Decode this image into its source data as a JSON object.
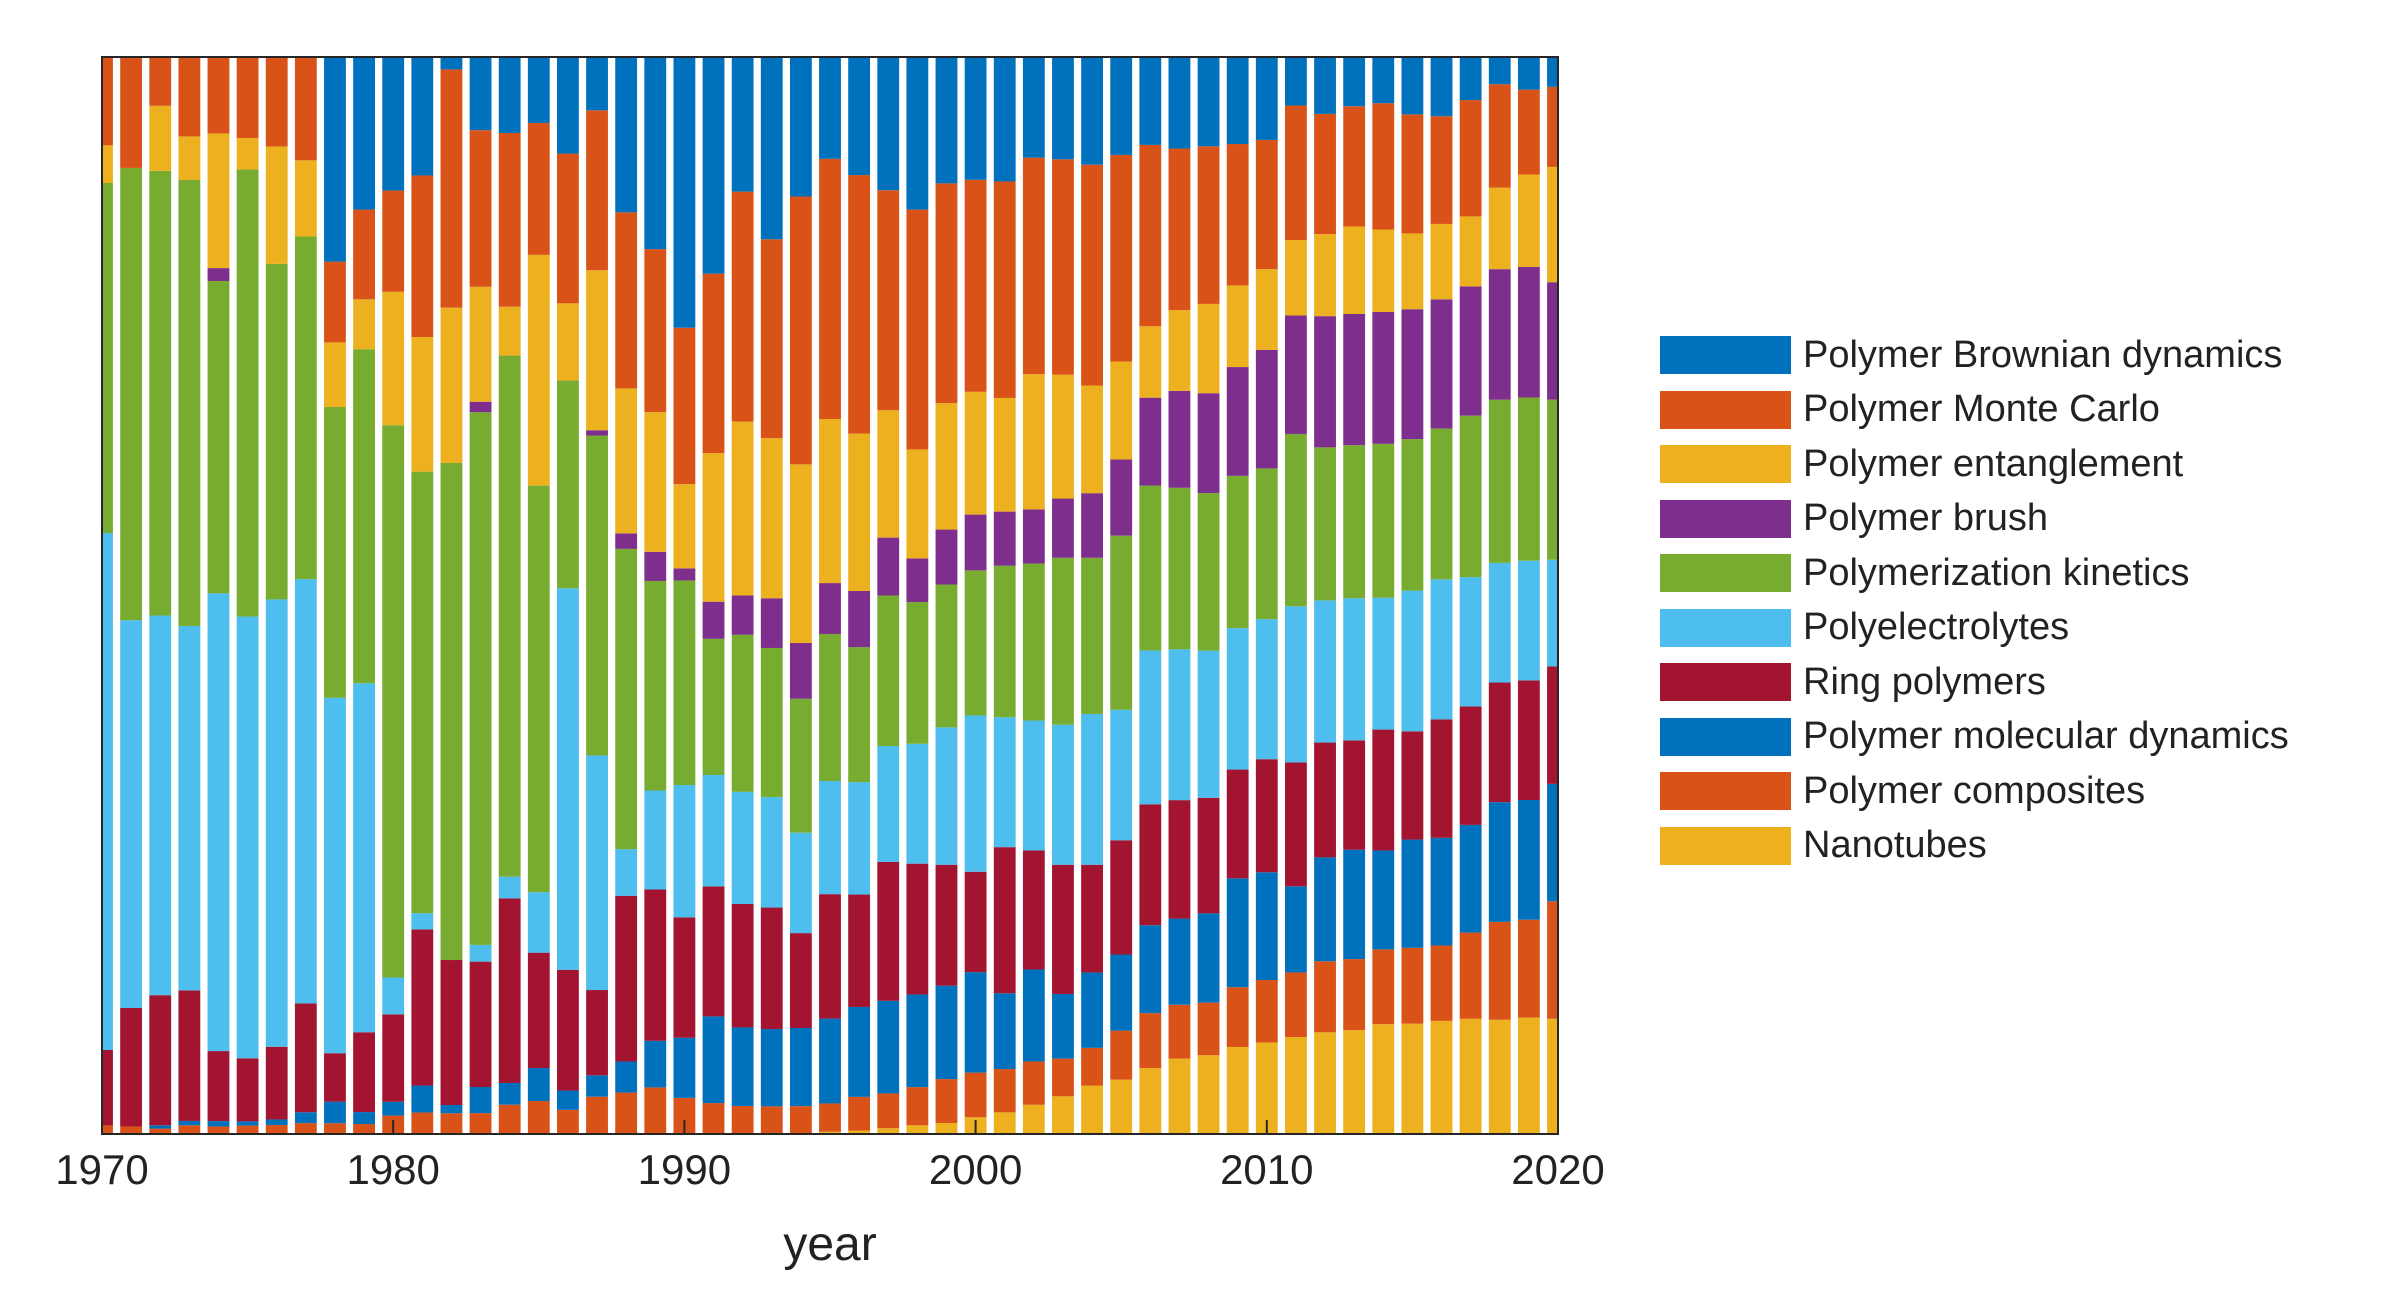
{
  "chart_data": {
    "type": "bar",
    "stacked": true,
    "normalized": true,
    "xlabel": "year",
    "ylabel": "",
    "xlim": [
      1970,
      2020
    ],
    "ylim": [
      0,
      1
    ],
    "x_ticks": [
      1970,
      1980,
      1990,
      2000,
      2010,
      2020
    ],
    "x_tick_labels": [
      "1970",
      "1980",
      "1990",
      "2000",
      "2010",
      "2020"
    ],
    "legend_position": "right",
    "categories": [
      1970,
      1971,
      1972,
      1973,
      1974,
      1975,
      1976,
      1977,
      1978,
      1979,
      1980,
      1981,
      1982,
      1983,
      1984,
      1985,
      1986,
      1987,
      1988,
      1989,
      1990,
      1991,
      1992,
      1993,
      1994,
      1995,
      1996,
      1997,
      1998,
      1999,
      2000,
      2001,
      2002,
      2003,
      2004,
      2005,
      2006,
      2007,
      2008,
      2009,
      2010,
      2011,
      2012,
      2013,
      2014,
      2015,
      2016,
      2017,
      2018,
      2019,
      2020
    ],
    "series": [
      {
        "name": "Nanotubes",
        "color": "#EDB120",
        "values": [
          0,
          0,
          0,
          0,
          0,
          0,
          0,
          0,
          0,
          0,
          0,
          0,
          0,
          0,
          0,
          0,
          0,
          0,
          0,
          0,
          0,
          0,
          0,
          0,
          0,
          0.002,
          0.003,
          0.005,
          0.008,
          0.01,
          0.015,
          0.02,
          0.027,
          0.035,
          0.045,
          0.05,
          0.06,
          0.07,
          0.075,
          0.08,
          0.085,
          0.09,
          0.093,
          0.095,
          0.1,
          0.102,
          0.105,
          0.107,
          0.105,
          0.107,
          0.108
        ]
      },
      {
        "name": "Polymer composites",
        "color": "#D95319",
        "values": [
          0.008,
          0.007,
          0.005,
          0.008,
          0.007,
          0.008,
          0.008,
          0.01,
          0.01,
          0.01,
          0.02,
          0.02,
          0.02,
          0.02,
          0.027,
          0.03,
          0.025,
          0.035,
          0.04,
          0.04,
          0.03,
          0.025,
          0.025,
          0.025,
          0.025,
          0.025,
          0.03,
          0.03,
          0.035,
          0.04,
          0.04,
          0.04,
          0.04,
          0.035,
          0.035,
          0.045,
          0.05,
          0.05,
          0.05,
          0.055,
          0.058,
          0.06,
          0.065,
          0.065,
          0.068,
          0.07,
          0.07,
          0.08,
          0.09,
          0.09,
          0.11
        ]
      },
      {
        "name": "Polymer molecular dynamics",
        "color": "#0072BD",
        "values": [
          0,
          0,
          0.003,
          0.004,
          0.005,
          0.004,
          0.005,
          0.01,
          0.02,
          0.012,
          0.015,
          0.025,
          0.008,
          0.025,
          0.02,
          0.03,
          0.02,
          0.02,
          0.03,
          0.04,
          0.05,
          0.07,
          0.07,
          0.07,
          0.07,
          0.075,
          0.08,
          0.08,
          0.085,
          0.085,
          0.09,
          0.07,
          0.085,
          0.06,
          0.07,
          0.07,
          0.08,
          0.08,
          0.085,
          0.1,
          0.1,
          0.08,
          0.095,
          0.1,
          0.09,
          0.1,
          0.1,
          0.1,
          0.11,
          0.11,
          0.11
        ]
      },
      {
        "name": "Ring polymers",
        "color": "#A2142F",
        "values": [
          0.07,
          0.11,
          0.12,
          0.12,
          0.065,
          0.06,
          0.065,
          0.1,
          0.045,
          0.08,
          0.095,
          0.145,
          0.14,
          0.12,
          0.17,
          0.105,
          0.125,
          0.08,
          0.16,
          0.13,
          0.1,
          0.105,
          0.11,
          0.11,
          0.085,
          0.11,
          0.1,
          0.12,
          0.12,
          0.11,
          0.09,
          0.135,
          0.11,
          0.12,
          0.1,
          0.105,
          0.11,
          0.11,
          0.11,
          0.1,
          0.105,
          0.115,
          0.105,
          0.1,
          0.11,
          0.1,
          0.11,
          0.11,
          0.11,
          0.11,
          0.11
        ]
      },
      {
        "name": "Polyelectrolytes",
        "color": "#4DBEEE",
        "values": [
          0.48,
          0.36,
          0.35,
          0.335,
          0.425,
          0.42,
          0.4,
          0.39,
          0.33,
          0.35,
          0.04,
          0.015,
          0,
          0.016,
          0.02,
          0.055,
          0.395,
          0.22,
          0.045,
          0.085,
          0.11,
          0.09,
          0.1,
          0.1,
          0.09,
          0.1,
          0.1,
          0.1,
          0.11,
          0.125,
          0.14,
          0.12,
          0.12,
          0.13,
          0.14,
          0.12,
          0.14,
          0.14,
          0.14,
          0.13,
          0.13,
          0.145,
          0.13,
          0.13,
          0.12,
          0.13,
          0.13,
          0.12,
          0.11,
          0.11,
          0.1
        ]
      },
      {
        "name": "Polymerization kinetics",
        "color": "#77AC30",
        "values": [
          0.325,
          0.42,
          0.41,
          0.41,
          0.29,
          0.425,
          0.3,
          0.315,
          0.27,
          0.335,
          0.6,
          0.41,
          0.48,
          0.51,
          0.48,
          0.37,
          0.215,
          0.3,
          0.29,
          0.18,
          0.17,
          0.11,
          0.14,
          0.135,
          0.12,
          0.13,
          0.12,
          0.13,
          0.13,
          0.13,
          0.13,
          0.14,
          0.145,
          0.155,
          0.145,
          0.16,
          0.15,
          0.15,
          0.15,
          0.14,
          0.14,
          0.16,
          0.14,
          0.14,
          0.14,
          0.14,
          0.14,
          0.15,
          0.15,
          0.15,
          0.15
        ]
      },
      {
        "name": "Polymer brush",
        "color": "#7E2F8E",
        "values": [
          0,
          0,
          0,
          0,
          0.012,
          0,
          0,
          0,
          0,
          0,
          0,
          0,
          0,
          0.01,
          0,
          0,
          0,
          0.005,
          0.015,
          0.025,
          0.01,
          0.03,
          0.035,
          0.045,
          0.05,
          0.045,
          0.05,
          0.05,
          0.04,
          0.05,
          0.05,
          0.05,
          0.05,
          0.055,
          0.06,
          0.07,
          0.08,
          0.09,
          0.095,
          0.1,
          0.11,
          0.11,
          0.12,
          0.12,
          0.12,
          0.12,
          0.12,
          0.12,
          0.12,
          0.12,
          0.11
        ]
      },
      {
        "name": "Polymer entanglement",
        "color": "#EDB120",
        "values": [
          0.035,
          0,
          0.06,
          0.04,
          0.125,
          0.03,
          0.105,
          0.07,
          0.06,
          0.05,
          0.145,
          0.125,
          0.15,
          0.11,
          0.045,
          0.21,
          0.08,
          0.15,
          0.14,
          0.12,
          0.07,
          0.12,
          0.155,
          0.145,
          0.16,
          0.145,
          0.14,
          0.11,
          0.1,
          0.115,
          0.11,
          0.105,
          0.125,
          0.115,
          0.1,
          0.09,
          0.065,
          0.075,
          0.085,
          0.075,
          0.075,
          0.07,
          0.075,
          0.08,
          0.075,
          0.07,
          0.07,
          0.065,
          0.075,
          0.085,
          0.108
        ]
      },
      {
        "name": "Polymer Monte Carlo",
        "color": "#D95319",
        "values": [
          0.082,
          0.103,
          0.045,
          0.073,
          0.071,
          0.077,
          0.08,
          0.095,
          0.075,
          0.09,
          0.11,
          0.15,
          0.23,
          0.15,
          0.16,
          0.12,
          0.155,
          0.15,
          0.17,
          0.14,
          0.13,
          0.145,
          0.205,
          0.18,
          0.24,
          0.23,
          0.23,
          0.19,
          0.22,
          0.2,
          0.19,
          0.2,
          0.2,
          0.2,
          0.205,
          0.19,
          0.165,
          0.15,
          0.15,
          0.13,
          0.12,
          0.125,
          0.11,
          0.11,
          0.115,
          0.11,
          0.1,
          0.108,
          0.095,
          0.078,
          0.075
        ]
      },
      {
        "name": "Polymer Brownian dynamics",
        "color": "#0072BD",
        "values": [
          0,
          0,
          0,
          0,
          0,
          0,
          0,
          0,
          0.19,
          0.153,
          0.145,
          0.11,
          0.012,
          0.07,
          0.07,
          0.06,
          0.1,
          0.05,
          0.15,
          0.165,
          0.225,
          0.175,
          0.12,
          0.165,
          0.125,
          0.09,
          0.105,
          0.115,
          0.14,
          0.115,
          0.11,
          0.115,
          0.093,
          0.095,
          0.1,
          0.09,
          0.08,
          0.085,
          0.085,
          0.08,
          0.077,
          0.045,
          0.052,
          0.045,
          0.042,
          0.053,
          0.055,
          0.04,
          0.025,
          0.03,
          0.028
        ]
      }
    ]
  }
}
